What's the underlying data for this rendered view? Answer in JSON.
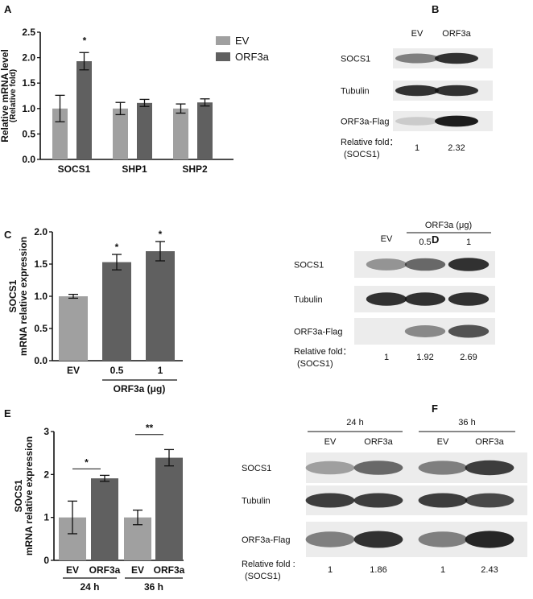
{
  "panels": {
    "A": "A",
    "B": "B",
    "C": "C",
    "D": "D",
    "E": "E",
    "F": "F"
  },
  "chart_data": [
    {
      "panel": "A",
      "type": "bar",
      "ylabel": "Relative mRNA level",
      "ylabel2": "(Relative fold)",
      "ylim": [
        0,
        2.5
      ],
      "yticks": [
        "0.0",
        "0.5",
        "1.0",
        "1.5",
        "2.0",
        "2.5"
      ],
      "categories": [
        "SOCS1",
        "SHP1",
        "SHP2"
      ],
      "series": [
        {
          "name": "EV",
          "color": "#a0a0a0",
          "values": [
            1.0,
            1.0,
            1.0
          ],
          "errors": [
            0.26,
            0.12,
            0.09
          ]
        },
        {
          "name": "ORF3a",
          "color": "#606060",
          "values": [
            1.93,
            1.11,
            1.12
          ],
          "errors": [
            0.17,
            0.07,
            0.07
          ]
        }
      ],
      "significance": [
        {
          "category": "SOCS1",
          "label": "*"
        }
      ],
      "legend": "top-right"
    },
    {
      "panel": "C",
      "type": "bar",
      "ylabel": "SOCS1",
      "ylabel2": "mRNA relative expression",
      "ylim": [
        0,
        2.0
      ],
      "yticks": [
        "0.0",
        "0.5",
        "1.0",
        "1.5",
        "2.0"
      ],
      "categories": [
        "EV",
        "0.5",
        "1"
      ],
      "group_label": "ORF3a (μg)",
      "values": [
        1.0,
        1.53,
        1.7
      ],
      "errors": [
        0.03,
        0.12,
        0.15
      ],
      "colors": [
        "#a0a0a0",
        "#606060",
        "#606060"
      ],
      "significance": [
        "",
        "*",
        "*"
      ]
    },
    {
      "panel": "E",
      "type": "bar",
      "ylabel": "SOCS1",
      "ylabel2": "mRNA relative expression",
      "ylim": [
        0,
        3
      ],
      "yticks": [
        "0",
        "1",
        "2",
        "3"
      ],
      "categories": [
        "EV",
        "ORF3a",
        "EV",
        "ORF3a"
      ],
      "groups": [
        "24 h",
        "36 h"
      ],
      "values": [
        1.0,
        1.91,
        1.0,
        2.39
      ],
      "errors": [
        0.38,
        0.07,
        0.17,
        0.19
      ],
      "colors": [
        "#a0a0a0",
        "#606060",
        "#a0a0a0",
        "#606060"
      ],
      "significance": [
        "*",
        "**"
      ]
    }
  ],
  "blots": {
    "B": {
      "lanes": [
        "EV",
        "ORF3a"
      ],
      "rows": [
        "SOCS1",
        "Tubulin",
        "ORF3a-Flag"
      ],
      "fold_label": "Relative fold：",
      "fold_sub": "(SOCS1)",
      "fold": [
        "1",
        "2.32"
      ]
    },
    "D": {
      "lanes": [
        "EV",
        "0.5",
        "1"
      ],
      "header": "ORF3a (μg)",
      "rows": [
        "SOCS1",
        "Tubulin",
        "ORF3a-Flag"
      ],
      "fold_label": "Relative fold：",
      "fold_sub": "(SOCS1)",
      "fold": [
        "1",
        "1.92",
        "2.69"
      ]
    },
    "F": {
      "groups": [
        "24 h",
        "36 h"
      ],
      "lanes": [
        "EV",
        "ORF3a",
        "EV",
        "ORF3a"
      ],
      "rows": [
        "SOCS1",
        "Tubulin",
        "ORF3a-Flag"
      ],
      "fold_label": "Relative fold :",
      "fold_sub": "(SOCS1)",
      "fold": [
        "1",
        "1.86",
        "1",
        "2.43"
      ]
    }
  }
}
